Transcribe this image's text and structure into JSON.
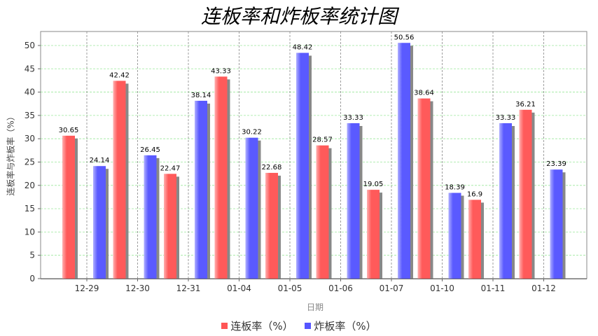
{
  "chart_data": {
    "type": "bar",
    "title": "连板率和炸板率统计图",
    "xlabel": "日期",
    "ylabel": "连板率与炸板率（%）",
    "categories": [
      "12-29",
      "12-30",
      "12-31",
      "01-04",
      "01-05",
      "01-06",
      "01-07",
      "01-10",
      "01-11",
      "01-12"
    ],
    "series": [
      {
        "name": "连板率（%）",
        "color": "#ff5555",
        "values": [
          30.65,
          42.42,
          22.47,
          43.33,
          22.68,
          28.57,
          19.05,
          38.64,
          16.9,
          36.21
        ]
      },
      {
        "name": "炸板率（%）",
        "color": "#5555ff",
        "values": [
          24.14,
          26.45,
          38.14,
          30.22,
          48.42,
          33.33,
          50.56,
          18.39,
          33.33,
          23.39
        ]
      }
    ],
    "ylim": [
      0,
      53
    ],
    "yticks": [
      0,
      5,
      10,
      15,
      20,
      25,
      30,
      35,
      40,
      45,
      50
    ],
    "grid": true,
    "legend_position": "bottom"
  }
}
